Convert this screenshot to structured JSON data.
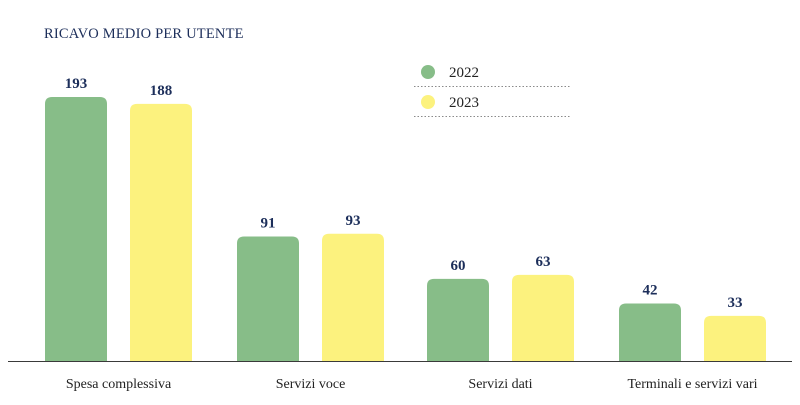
{
  "chart_data": {
    "type": "bar",
    "title": "RICAVO MEDIO PER UTENTE",
    "categories": [
      "Spesa complessiva",
      "Servizi voce",
      "Servizi dati",
      "Terminali e servizi vari"
    ],
    "series": [
      {
        "name": "2022",
        "color": "#87bd88",
        "values": [
          193,
          91,
          60,
          42
        ]
      },
      {
        "name": "2023",
        "color": "#fcf27e",
        "values": [
          188,
          93,
          63,
          33
        ]
      }
    ],
    "ylim": [
      0,
      193
    ],
    "grid": false,
    "legend_position": "top-right",
    "xlabel": "",
    "ylabel": ""
  }
}
